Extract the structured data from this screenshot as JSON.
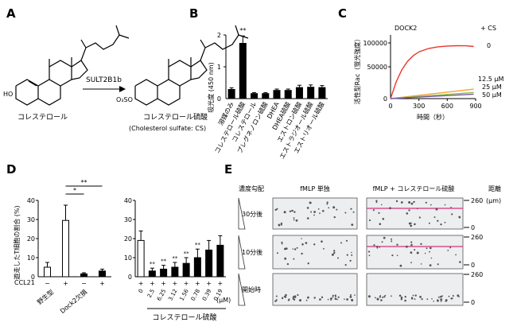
{
  "panels": {
    "A": "A",
    "B": "B",
    "C": "C",
    "D": "D",
    "E": "E"
  },
  "panelA": {
    "enzyme": "SULT2B1b",
    "substrate": "コレステロール",
    "product": "コレステロール硫酸",
    "product_en": "(Cholesterol sulfate: CS)",
    "ho": "HO",
    "sulfo_charge": "⊖",
    "sulfo": "O₃SO"
  },
  "chart_data": [
    {
      "id": "B",
      "type": "bar",
      "ylabel": "吸光度 (450 nm)",
      "ylim": [
        0,
        2
      ],
      "yticks": [
        "0",
        "1",
        "2"
      ],
      "categories": [
        "溶媒のみ",
        "コレステロール硫酸",
        "コレステロール",
        "プレグネノロン硫酸",
        "DHEA",
        "DHEA硫酸",
        "エストロン硫酸",
        "エストラジオール硫酸",
        "エストリオール硫酸"
      ],
      "values": [
        0.3,
        1.75,
        0.17,
        0.17,
        0.27,
        0.27,
        0.36,
        0.37,
        0.36
      ],
      "errors": [
        0.04,
        0.22,
        0.02,
        0.02,
        0.03,
        0.03,
        0.06,
        0.06,
        0.05
      ],
      "significance": [
        "",
        "**",
        "",
        "",
        "",
        "",
        "",
        "",
        ""
      ]
    },
    {
      "id": "C",
      "type": "line",
      "title": "DOCK2",
      "legend_title": "+ CS",
      "ylabel": "活性型Rac（蛍光強度）",
      "xlabel": "時間（秒）",
      "xlim": [
        0,
        900
      ],
      "ylim": [
        0,
        100000
      ],
      "xticks": [
        "0",
        "300",
        "600",
        "900"
      ],
      "yticks": [
        "0",
        "50000",
        "100000"
      ],
      "series": [
        {
          "name": "0",
          "color": "#e8372c",
          "x": [
            0,
            60,
            120,
            180,
            240,
            300,
            400,
            500,
            600,
            700,
            800,
            880
          ],
          "y": [
            0,
            30000,
            52000,
            67000,
            77000,
            84000,
            90000,
            93000,
            94500,
            95000,
            94800,
            93500
          ]
        },
        {
          "name": "12.5 μM",
          "color": "#f2a13a",
          "x": [
            0,
            880
          ],
          "y": [
            0,
            17000
          ]
        },
        {
          "name": "25 μM",
          "color": "#8fbf3b",
          "x": [
            0,
            880
          ],
          "y": [
            0,
            11000
          ]
        },
        {
          "name": "50 μM",
          "color": "#7b5aa6",
          "x": [
            0,
            880
          ],
          "y": [
            0,
            8000
          ]
        }
      ]
    },
    {
      "id": "D",
      "type": "bar",
      "ylabel": "遊走したT細胞の割合 (%)",
      "ylim": [
        0,
        40
      ],
      "yticks": [
        "0",
        "10",
        "20",
        "30",
        "40"
      ],
      "left": {
        "ccl21_label": "CCL21",
        "ccl21": [
          "−",
          "+",
          "−",
          "+"
        ],
        "groups": [
          "野生型",
          "Dock2欠損"
        ],
        "values": [
          5,
          29.5,
          1.5,
          3
        ],
        "errors": [
          2.5,
          8,
          0.6,
          1
        ],
        "fills": [
          "white",
          "white",
          "black",
          "black"
        ],
        "sig": [
          {
            "label": "*",
            "from": 1,
            "to": 2
          },
          {
            "label": "**",
            "from": 1,
            "to": 3
          }
        ]
      },
      "right": {
        "ccl21": [
          "+",
          "+",
          "+",
          "+",
          "+",
          "+",
          "+",
          "+"
        ],
        "conc": [
          "0",
          "2.5",
          "6.25",
          "3.12",
          "1.56",
          "0.78",
          "0.39",
          "0.19"
        ],
        "conc_unit": "(μM)",
        "xlabel": "コレステロール硫酸",
        "values": [
          19,
          3,
          4,
          5,
          7,
          10,
          14,
          16.5
        ],
        "errors": [
          5,
          1.5,
          2,
          2.5,
          3,
          4.5,
          5,
          5
        ],
        "fills": [
          "white",
          "black",
          "black",
          "black",
          "black",
          "black",
          "black",
          "black"
        ],
        "sig": [
          "",
          "**",
          "**",
          "**",
          "**",
          "**",
          "",
          ""
        ]
      }
    }
  ],
  "panelE": {
    "gradient_label": "濃度勾配",
    "col1": "fMLP 単独",
    "col2": "fMLP + コレステロール硫酸",
    "distance_label": "距離",
    "rows": [
      "30分後",
      "10分後",
      "開始時"
    ],
    "ticks": [
      {
        "top": "260",
        "unit": "(μm)",
        "bottom": "0"
      },
      {
        "top": "260",
        "bottom": "0"
      },
      {
        "top": "260",
        "bottom": "0"
      }
    ]
  }
}
